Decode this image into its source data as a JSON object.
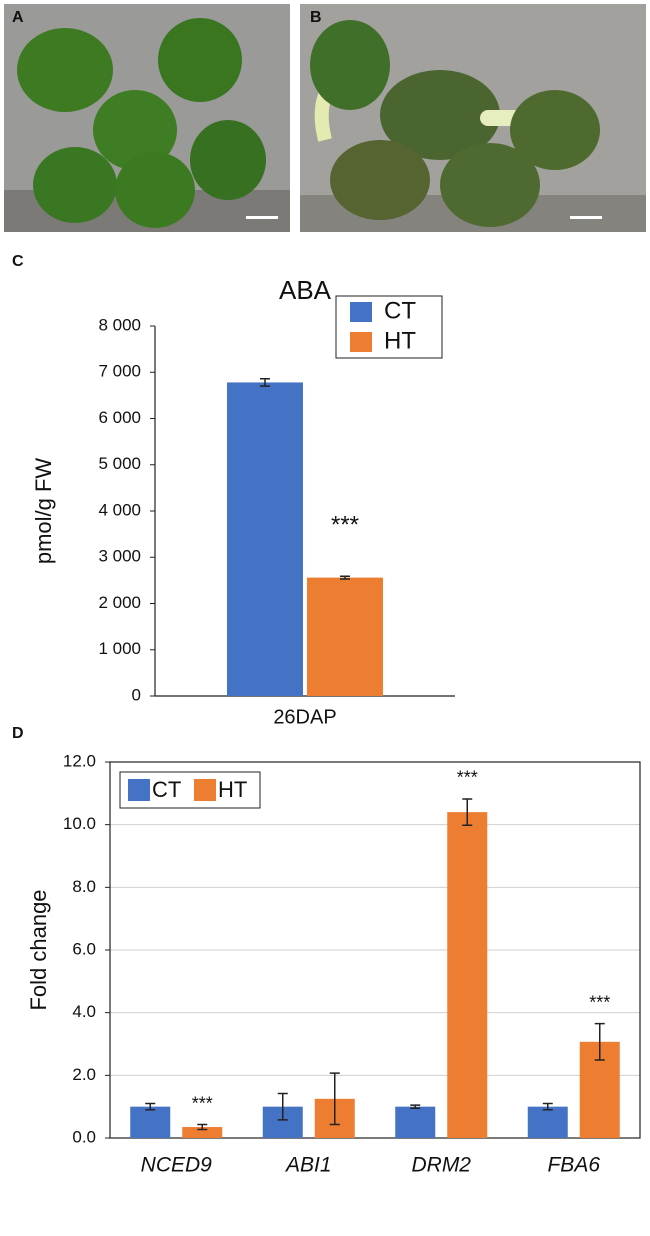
{
  "photos": [
    {
      "label": "A"
    },
    {
      "label": "B"
    }
  ],
  "chart_data": [
    {
      "type": "bar",
      "panel_label": "C",
      "title": "ABA",
      "y_label": "pmol/g FW",
      "categories": [
        "26DAP"
      ],
      "series": [
        {
          "name": "CT",
          "color": "#4472c4",
          "values": [
            6780
          ],
          "error": [
            80
          ],
          "annotations": [
            null
          ]
        },
        {
          "name": "HT",
          "color": "#ed7d31",
          "values": [
            2560
          ],
          "error": [
            30
          ],
          "annotations": [
            "***"
          ]
        }
      ],
      "ylim": [
        0,
        8000
      ],
      "yticks": [
        0,
        {
          "value": 1000,
          "label": "1 000"
        },
        {
          "value": 2000,
          "label": "2 000"
        },
        {
          "value": 3000,
          "label": "3 000"
        },
        {
          "value": 4000,
          "label": "4 000"
        },
        {
          "value": 5000,
          "label": "5 000"
        },
        {
          "value": 6000,
          "label": "6 000"
        },
        {
          "value": 7000,
          "label": "7 000"
        },
        {
          "value": 8000,
          "label": "8 000"
        }
      ],
      "grid": false,
      "legend": "upper right"
    },
    {
      "type": "bar",
      "panel_label": "D",
      "y_label": "Fold change",
      "categories": [
        "NCED9",
        "ABI1",
        "DRM2",
        "FBA6"
      ],
      "series": [
        {
          "name": "CT",
          "color": "#4472c4",
          "values": [
            1.0,
            1.0,
            1.0,
            1.0
          ],
          "error": [
            0.1,
            0.42,
            0.05,
            0.1
          ],
          "annotations": [
            null,
            null,
            null,
            null
          ]
        },
        {
          "name": "HT",
          "color": "#ed7d31",
          "values": [
            0.35,
            1.25,
            10.4,
            3.07
          ],
          "error": [
            0.08,
            0.82,
            0.42,
            0.58
          ],
          "annotations": [
            "***",
            null,
            "***",
            "***"
          ]
        }
      ],
      "ylim": [
        0,
        12
      ],
      "yticks": [
        {
          "value": 0,
          "label": "0.0"
        },
        {
          "value": 2,
          "label": "2.0"
        },
        {
          "value": 4,
          "label": "4.0"
        },
        {
          "value": 6,
          "label": "6.0"
        },
        {
          "value": 8,
          "label": "8.0"
        },
        {
          "value": 10,
          "label": "10.0"
        },
        {
          "value": 12,
          "label": "12.0"
        }
      ],
      "grid": true,
      "legend": "upper left"
    }
  ]
}
